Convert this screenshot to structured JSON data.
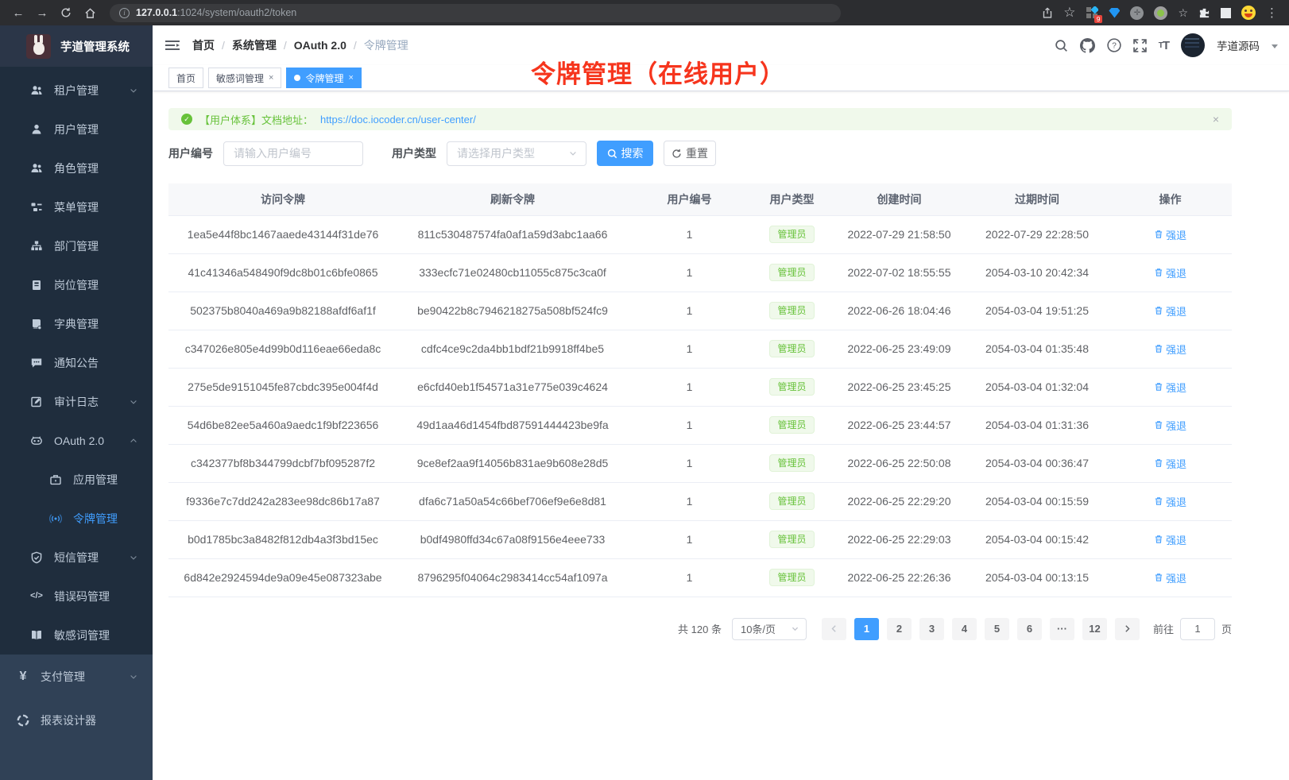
{
  "browser": {
    "url_host": "127.0.0.1",
    "url_path": ":1024/system/oauth2/token",
    "extension_badge": "9"
  },
  "sidebar": {
    "app_title": "芋道管理系统",
    "nested_items": [
      {
        "label": "租户管理",
        "icon": "tenant-icon",
        "chevron": "down",
        "level": 2
      },
      {
        "label": "用户管理",
        "icon": "user-icon",
        "level": 2
      },
      {
        "label": "角色管理",
        "icon": "role-icon",
        "level": 2
      },
      {
        "label": "菜单管理",
        "icon": "menu-tree-icon",
        "level": 2
      },
      {
        "label": "部门管理",
        "icon": "dept-icon",
        "level": 2
      },
      {
        "label": "岗位管理",
        "icon": "post-icon",
        "level": 2
      },
      {
        "label": "字典管理",
        "icon": "dict-icon",
        "level": 2
      },
      {
        "label": "通知公告",
        "icon": "notice-icon",
        "level": 2
      },
      {
        "label": "审计日志",
        "icon": "audit-icon",
        "chevron": "down",
        "level": 2
      },
      {
        "label": "OAuth 2.0",
        "icon": "oauth-icon",
        "chevron": "up",
        "level": 2
      },
      {
        "label": "应用管理",
        "icon": "app-icon",
        "level": 3
      },
      {
        "label": "令牌管理",
        "icon": "token-icon",
        "level": 3,
        "active": true
      },
      {
        "label": "短信管理",
        "icon": "sms-icon",
        "chevron": "down",
        "level": 2
      },
      {
        "label": "错误码管理",
        "icon": "errcode-icon",
        "level": 2
      },
      {
        "label": "敏感词管理",
        "icon": "sensitive-icon",
        "level": 2
      }
    ],
    "root_items": [
      {
        "label": "支付管理",
        "icon": "pay-icon",
        "chevron": "down",
        "level": 1
      },
      {
        "label": "报表设计器",
        "icon": "report-icon",
        "level": 1
      }
    ]
  },
  "navbar": {
    "breadcrumb": [
      "首页",
      "系统管理",
      "OAuth 2.0",
      "令牌管理"
    ],
    "username": "芋道源码"
  },
  "tabs": [
    {
      "label": "首页",
      "closable": false,
      "active": false
    },
    {
      "label": "敏感词管理",
      "closable": true,
      "active": false
    },
    {
      "label": "令牌管理",
      "closable": true,
      "active": true
    }
  ],
  "annotation": {
    "text": "令牌管理（在线用户）",
    "color": "#f6351d"
  },
  "alert": {
    "prefix": "【用户体系】文档地址：",
    "link": "https://doc.iocoder.cn/user-center/",
    "close": "×"
  },
  "filters": {
    "user_id_label": "用户编号",
    "user_id_placeholder": "请输入用户编号",
    "user_type_label": "用户类型",
    "user_type_placeholder": "请选择用户类型",
    "search_label": "搜索",
    "reset_label": "重置"
  },
  "table": {
    "headers": [
      "访问令牌",
      "刷新令牌",
      "用户编号",
      "用户类型",
      "创建时间",
      "过期时间",
      "操作"
    ],
    "action_label": "强退",
    "rows": [
      {
        "access": "1ea5e44f8bc1467aaede43144f31de76",
        "refresh": "811c530487574fa0af1a59d3abc1aa66",
        "user_id": "1",
        "user_type": "管理员",
        "created": "2022-07-29 21:58:50",
        "expires": "2022-07-29 22:28:50"
      },
      {
        "access": "41c41346a548490f9dc8b01c6bfe0865",
        "refresh": "333ecfc71e02480cb11055c875c3ca0f",
        "user_id": "1",
        "user_type": "管理员",
        "created": "2022-07-02 18:55:55",
        "expires": "2054-03-10 20:42:34"
      },
      {
        "access": "502375b8040a469a9b82188afdf6af1f",
        "refresh": "be90422b8c7946218275a508bf524fc9",
        "user_id": "1",
        "user_type": "管理员",
        "created": "2022-06-26 18:04:46",
        "expires": "2054-03-04 19:51:25"
      },
      {
        "access": "c347026e805e4d99b0d116eae66eda8c",
        "refresh": "cdfc4ce9c2da4bb1bdf21b9918ff4be5",
        "user_id": "1",
        "user_type": "管理员",
        "created": "2022-06-25 23:49:09",
        "expires": "2054-03-04 01:35:48"
      },
      {
        "access": "275e5de9151045fe87cbdc395e004f4d",
        "refresh": "e6cfd40eb1f54571a31e775e039c4624",
        "user_id": "1",
        "user_type": "管理员",
        "created": "2022-06-25 23:45:25",
        "expires": "2054-03-04 01:32:04"
      },
      {
        "access": "54d6be82ee5a460a9aedc1f9bf223656",
        "refresh": "49d1aa46d1454fbd87591444423be9fa",
        "user_id": "1",
        "user_type": "管理员",
        "created": "2022-06-25 23:44:57",
        "expires": "2054-03-04 01:31:36"
      },
      {
        "access": "c342377bf8b344799dcbf7bf095287f2",
        "refresh": "9ce8ef2aa9f14056b831ae9b608e28d5",
        "user_id": "1",
        "user_type": "管理员",
        "created": "2022-06-25 22:50:08",
        "expires": "2054-03-04 00:36:47"
      },
      {
        "access": "f9336e7c7dd242a283ee98dc86b17a87",
        "refresh": "dfa6c71a50a54c66bef706ef9e6e8d81",
        "user_id": "1",
        "user_type": "管理员",
        "created": "2022-06-25 22:29:20",
        "expires": "2054-03-04 00:15:59"
      },
      {
        "access": "b0d1785bc3a8482f812db4a3f3bd15ec",
        "refresh": "b0df4980ffd34c67a08f9156e4eee733",
        "user_id": "1",
        "user_type": "管理员",
        "created": "2022-06-25 22:29:03",
        "expires": "2054-03-04 00:15:42"
      },
      {
        "access": "6d842e2924594de9a09e45e087323abe",
        "refresh": "8796295f04064c2983414cc54af1097a",
        "user_id": "1",
        "user_type": "管理员",
        "created": "2022-06-25 22:26:36",
        "expires": "2054-03-04 00:13:15"
      }
    ]
  },
  "pagination": {
    "total": "共 120 条",
    "page_size": "10条/页",
    "pages": [
      "1",
      "2",
      "3",
      "4",
      "5",
      "6",
      "···",
      "12"
    ],
    "active_page": "1",
    "goto_label": "前往",
    "goto_value": "1",
    "page_unit": "页"
  },
  "colors": {
    "primary": "#409eff",
    "success": "#67c23a",
    "sidebar_bg": "#1f2d3d",
    "sidebar_root_bg": "#304156"
  }
}
